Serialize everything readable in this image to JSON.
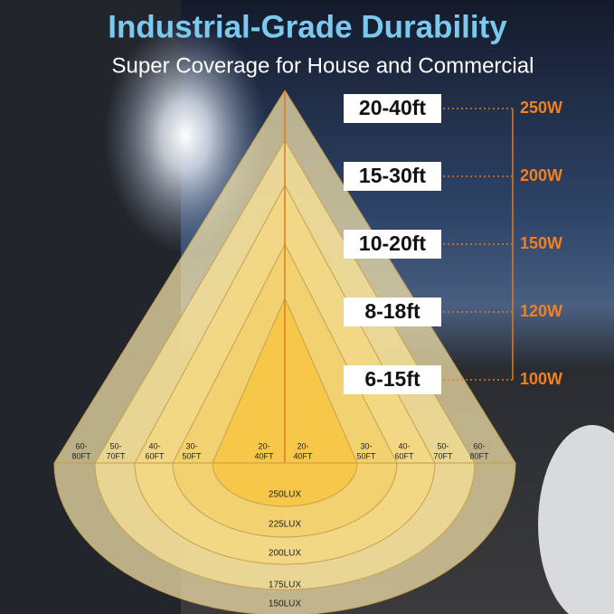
{
  "header": {
    "title": "Industrial-Grade Durability",
    "subtitle": "Super Coverage for House and Commercial"
  },
  "heights": [
    "20-40ft",
    "15-30ft",
    "10-20ft",
    "8-18ft",
    "6-15ft"
  ],
  "wattages": [
    "250W",
    "200W",
    "150W",
    "120W",
    "100W"
  ],
  "widths_left": [
    [
      "60-",
      "80FT"
    ],
    [
      "50-",
      "70FT"
    ],
    [
      "40-",
      "60FT"
    ],
    [
      "30-",
      "50FT"
    ],
    [
      "20-",
      "40FT"
    ]
  ],
  "widths_right": [
    [
      "20-",
      "40FT"
    ],
    [
      "30-",
      "50FT"
    ],
    [
      "40-",
      "60FT"
    ],
    [
      "50-",
      "70FT"
    ],
    [
      "60-",
      "80FT"
    ]
  ],
  "lux": [
    "250LUX",
    "225LUX",
    "200LUX",
    "175LUX",
    "150LUX"
  ]
}
